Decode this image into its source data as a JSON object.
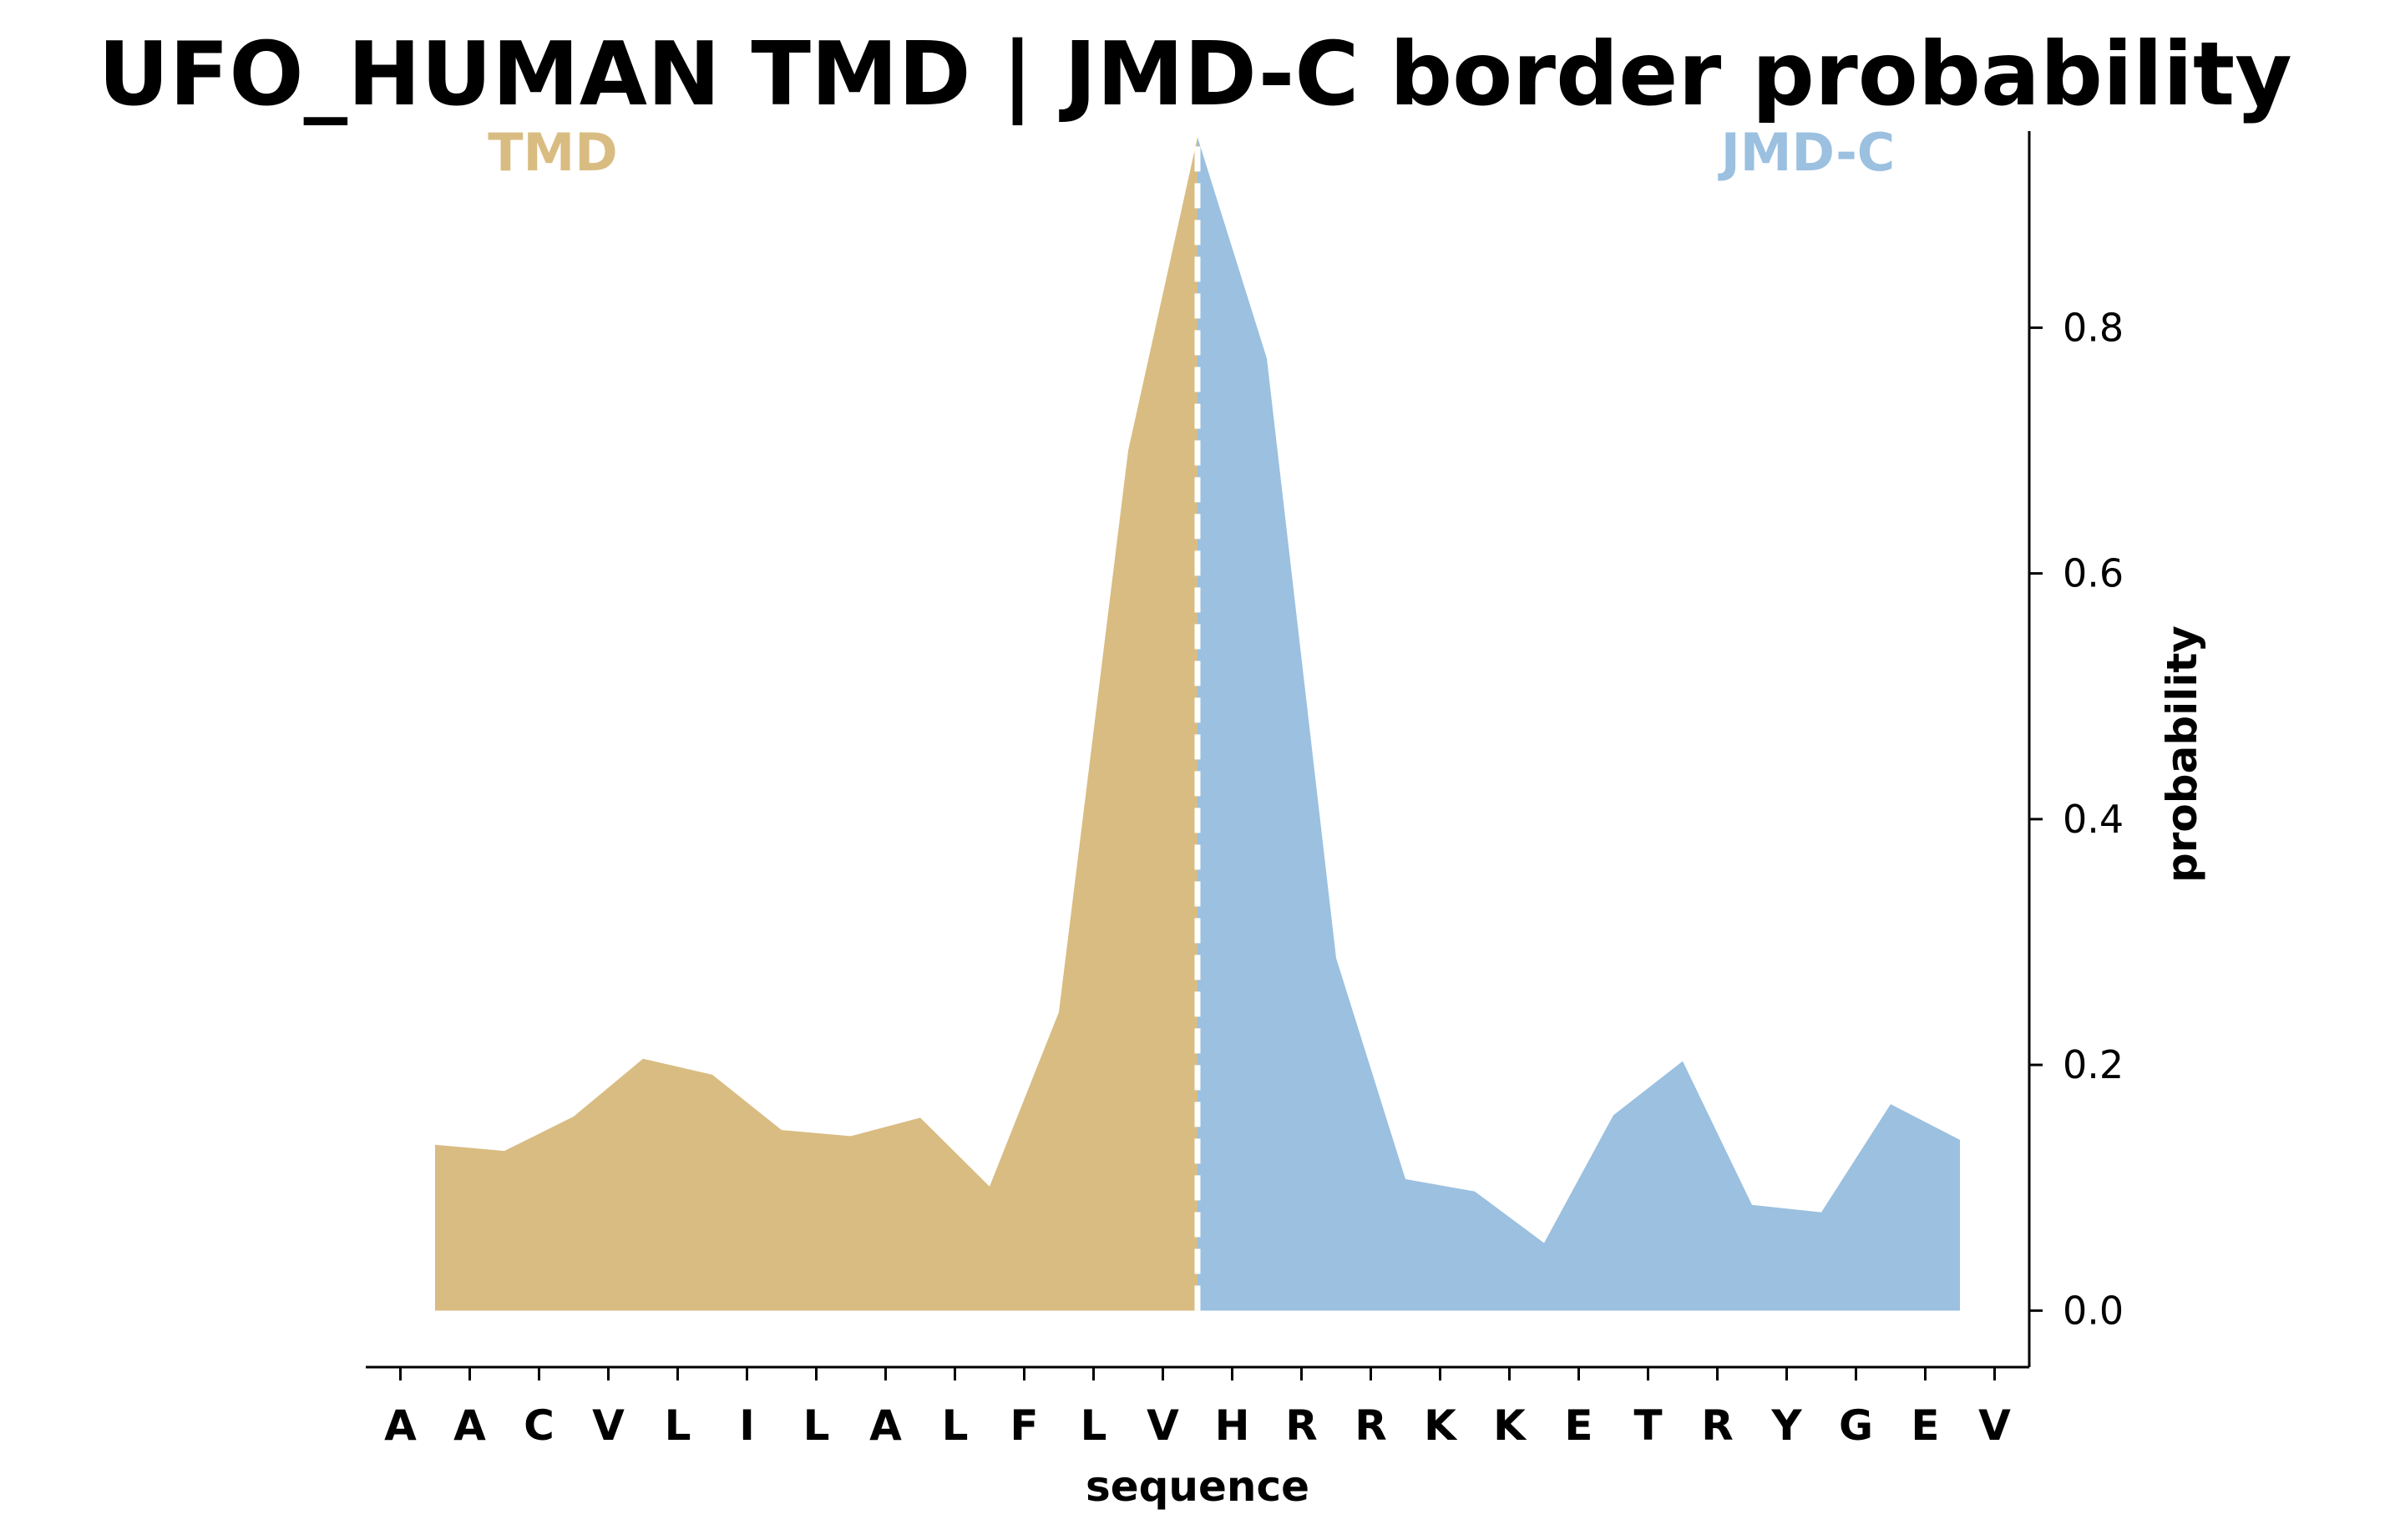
{
  "chart_data": {
    "type": "area",
    "title": "UFO_HUMAN TMD | JMD-C border probability",
    "xlabel": "sequence",
    "ylabel": "probability",
    "categories": [
      "A",
      "A",
      "C",
      "V",
      "L",
      "I",
      "L",
      "A",
      "L",
      "F",
      "L",
      "V",
      "H",
      "R",
      "R",
      "K",
      "K",
      "E",
      "T",
      "R",
      "Y",
      "G",
      "E",
      "V"
    ],
    "border_position": 11.5,
    "ylim": [
      -0.046,
      0.96
    ],
    "yticks": [
      "0.0",
      "0.2",
      "0.4",
      "0.6",
      "0.8"
    ],
    "ytick_values": [
      0.0,
      0.2,
      0.4,
      0.6,
      0.8
    ],
    "y_axis_side": "right",
    "grid": false,
    "series": [
      {
        "name": "TMD",
        "color": "#d9bc82",
        "x": [
          0.5,
          1.5,
          2.5,
          3.5,
          4.5,
          5.5,
          6.5,
          7.5,
          8.5,
          9.5,
          10.5,
          11.5
        ],
        "y": [
          0.135,
          0.13,
          0.158,
          0.205,
          0.192,
          0.147,
          0.142,
          0.157,
          0.101,
          0.243,
          0.7,
          0.955
        ]
      },
      {
        "name": "JMD-C",
        "color": "#9bc0e0",
        "x": [
          11.5,
          12.5,
          13.5,
          14.5,
          15.5,
          16.5,
          17.5,
          18.5,
          19.5,
          20.5,
          21.5,
          22.5
        ],
        "y": [
          0.955,
          0.775,
          0.287,
          0.107,
          0.097,
          0.055,
          0.159,
          0.203,
          0.086,
          0.08,
          0.168,
          0.139
        ]
      }
    ]
  }
}
